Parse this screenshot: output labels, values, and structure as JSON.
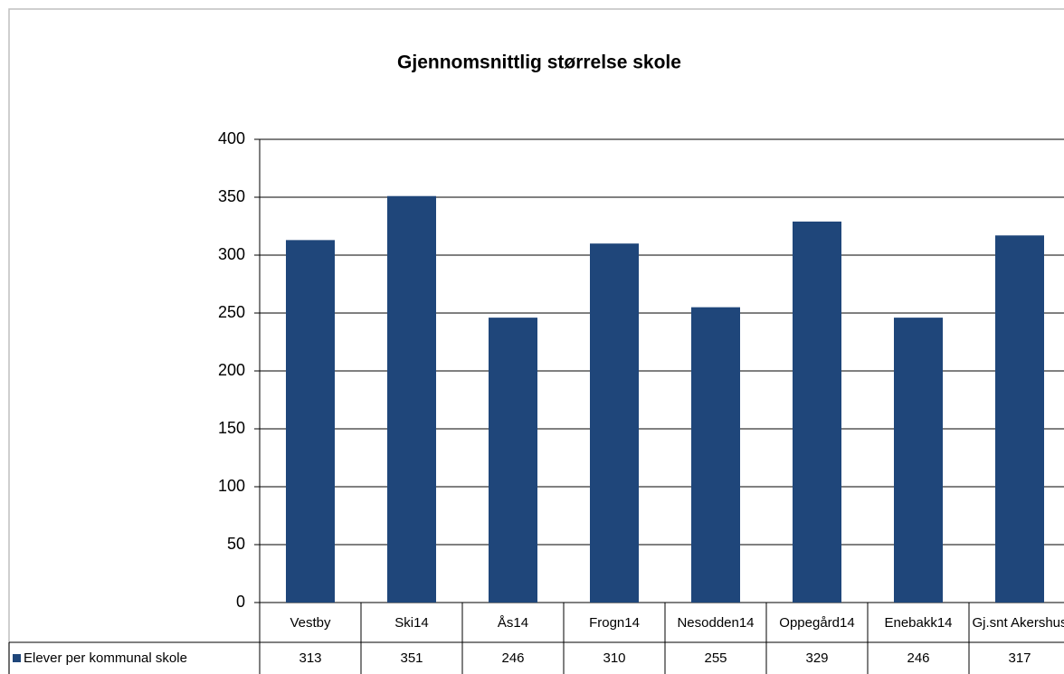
{
  "chart_data": {
    "type": "bar",
    "title": "Gjennomsnittlig størrelse skole",
    "categories": [
      "Vestby",
      "Ski14",
      "Ås14",
      "Frogn14",
      "Nesodden14",
      "Oppegård14",
      "Enebakk14",
      "Gj.snt Akershus"
    ],
    "series": [
      {
        "name": "Elever per kommunal skole",
        "color": "#1f467a",
        "values": [
          313,
          351,
          246,
          310,
          255,
          329,
          246,
          317
        ]
      }
    ],
    "ylim": [
      0,
      400
    ],
    "yticks": [
      0,
      50,
      100,
      150,
      200,
      250,
      300,
      350,
      400
    ],
    "grid": true,
    "data_table": true
  }
}
